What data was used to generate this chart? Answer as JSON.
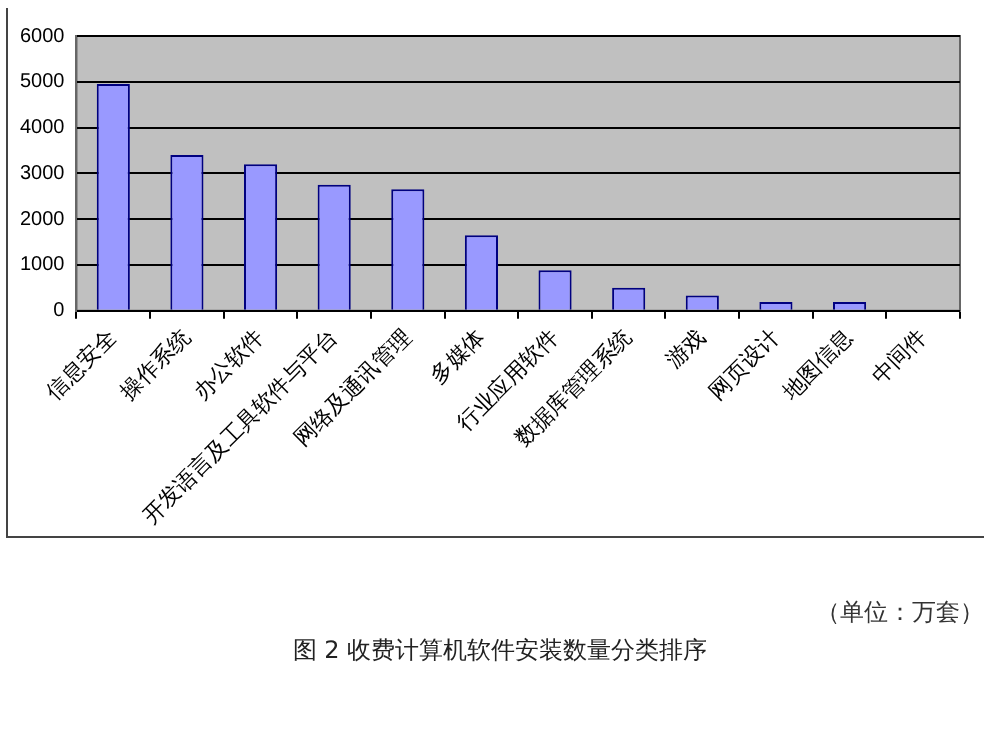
{
  "chart_data": {
    "type": "bar",
    "title": "图 2  收费计算机软件安装数量分类排序",
    "categories": [
      "信息安全",
      "操作系统",
      "办公软件",
      "开发语言及工具软件与平台",
      "网络及通讯管理",
      "多媒体",
      "行业应用软件",
      "数据库管理系统",
      "游戏",
      "网页设计",
      "地图信息",
      "中间件"
    ],
    "values": [
      4950,
      3400,
      3200,
      2750,
      2650,
      1650,
      880,
      500,
      330,
      190,
      190,
      0
    ],
    "color": "#9999ff",
    "ylim": [
      0,
      6000
    ],
    "yticks": [
      0,
      1000,
      2000,
      3000,
      4000,
      5000,
      6000
    ],
    "grid": "y",
    "legend": false,
    "annotations": [
      "（单位：万套）"
    ]
  }
}
